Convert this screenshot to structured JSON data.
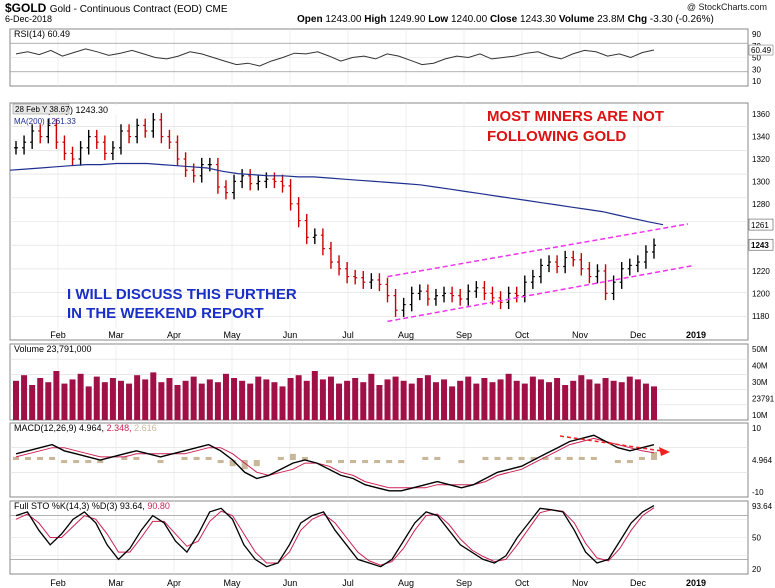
{
  "header": {
    "symbol": "$GOLD",
    "name": "Gold - Continuous Contract (EOD)",
    "exchange": "CME",
    "date": "6-Dec-2018",
    "open_label": "Open",
    "open": "1243.00",
    "high_label": "High",
    "high": "1249.90",
    "low_label": "Low",
    "low": "1240.00",
    "close_label": "Close",
    "close": "1243.30",
    "volume_label": "Volume",
    "volume": "23.8M",
    "chg_label": "Chg",
    "chg": "-3.30 (-0.26%)",
    "credit": "@ StockCharts.com"
  },
  "colors": {
    "up": "#000000",
    "down": "#cc0000",
    "ma": "#1f2f8f",
    "annotation_red": "#dd1111",
    "annotation_blue": "#1a2fc8",
    "channel": "#ee33ee",
    "volume_bar": "#a01046",
    "rsi_line": "#333333",
    "macd_hist": "#c9b79a",
    "signal": "#cc2255"
  },
  "chart_data": [
    {
      "type": "line",
      "panel": "rsi",
      "legend": "RSI(14) 60.49",
      "ylim": [
        10,
        90
      ],
      "ticks": [
        "90",
        "70",
        "50",
        "30",
        "10"
      ],
      "last_label": "60.49",
      "values": [
        55,
        58,
        54,
        60,
        52,
        57,
        62,
        58,
        53,
        56,
        60,
        55,
        50,
        48,
        52,
        58,
        55,
        50,
        45,
        40,
        42,
        38,
        45,
        50,
        56,
        55,
        58,
        52,
        45,
        50,
        52,
        48,
        55,
        52,
        46,
        40,
        42,
        48,
        52,
        50,
        55,
        48,
        50,
        52,
        56,
        58,
        52,
        48,
        55,
        60,
        58,
        52,
        55,
        50,
        57,
        60.49
      ]
    },
    {
      "type": "line",
      "panel": "price",
      "legend": "$GOLD (Daily) 1243.30",
      "ma_legend": "MA(200) 1261.33",
      "tooltip": "28 Feb Y 38.67",
      "ylim": [
        1170,
        1370
      ],
      "ticks": [
        "1360",
        "1340",
        "1320",
        "1300",
        "1280",
        "1261",
        "1243",
        "1220",
        "1200",
        "1180"
      ],
      "months": [
        "Feb",
        "Mar",
        "Apr",
        "May",
        "Jun",
        "Jul",
        "Aug",
        "Sep",
        "Oct",
        "Nov",
        "Dec",
        "2019"
      ],
      "close": [
        1330,
        1335,
        1345,
        1340,
        1350,
        1335,
        1325,
        1320,
        1330,
        1340,
        1335,
        1325,
        1330,
        1345,
        1340,
        1350,
        1345,
        1355,
        1340,
        1335,
        1320,
        1310,
        1305,
        1315,
        1315,
        1295,
        1290,
        1300,
        1305,
        1298,
        1300,
        1302,
        1300,
        1296,
        1280,
        1265,
        1250,
        1252,
        1240,
        1228,
        1222,
        1215,
        1214,
        1210,
        1212,
        1208,
        1198,
        1185,
        1190,
        1200,
        1202,
        1195,
        1198,
        1200,
        1198,
        1195,
        1202,
        1205,
        1200,
        1196,
        1192,
        1200,
        1198,
        1210,
        1215,
        1225,
        1228,
        1224,
        1232,
        1230,
        1222,
        1215,
        1220,
        1200,
        1210,
        1222,
        1225,
        1228,
        1237,
        1243
      ],
      "ma200": [
        1310,
        1311,
        1312,
        1313,
        1314,
        1315,
        1315,
        1316,
        1316,
        1316,
        1315,
        1314,
        1313,
        1312,
        1309,
        1307,
        1306,
        1305,
        1305,
        1304,
        1304,
        1303,
        1302,
        1301,
        1300,
        1299,
        1298,
        1297,
        1295,
        1293,
        1291,
        1289,
        1287,
        1285,
        1283,
        1281,
        1279,
        1277,
        1275,
        1273,
        1270,
        1267,
        1264,
        1261.33
      ],
      "annotation_red": [
        "MOST MINERS ARE NOT",
        "FOLLOWING GOLD"
      ],
      "annotation_blue": [
        "I WILL DISCUSS THIS FURTHER",
        "IN THE WEEKEND REPORT"
      ]
    },
    {
      "type": "bar",
      "panel": "volume",
      "legend": "Volume 23,791,000",
      "ticks": [
        "50M",
        "40M",
        "30M",
        "23791",
        "10M"
      ],
      "ylim": [
        0,
        50
      ],
      "values": [
        28,
        32,
        25,
        30,
        27,
        35,
        26,
        29,
        33,
        24,
        31,
        27,
        30,
        28,
        26,
        32,
        29,
        34,
        27,
        30,
        25,
        28,
        31,
        26,
        29,
        27,
        33,
        30,
        28,
        26,
        31,
        29,
        27,
        24,
        30,
        32,
        28,
        35,
        29,
        31,
        26,
        28,
        30,
        27,
        33,
        25,
        29,
        31,
        28,
        26,
        30,
        32,
        27,
        29,
        24,
        28,
        31,
        26,
        30,
        27,
        29,
        33,
        28,
        26,
        31,
        29,
        27,
        30,
        25,
        28,
        32,
        29,
        26,
        30,
        28,
        27,
        31,
        29,
        26,
        24
      ]
    },
    {
      "type": "line",
      "panel": "macd",
      "legend_name": "MACD(12,26,9)",
      "macd_value": "4.964",
      "signal_value": "2.348",
      "hist_value": "2.616",
      "ylim": [
        -12,
        12
      ],
      "ticks": [
        "10",
        "4.964",
        "-10"
      ],
      "macd": [
        2,
        3,
        4,
        5,
        3,
        2,
        1,
        0,
        1,
        2,
        3,
        2,
        1,
        2,
        3,
        4,
        5,
        3,
        0,
        -4,
        -6,
        -5,
        -3,
        -1,
        0,
        -1,
        -3,
        -5,
        -6,
        -8,
        -9,
        -10,
        -10,
        -9,
        -8,
        -7,
        -8,
        -9,
        -8,
        -6,
        -4,
        -3,
        -2,
        0,
        2,
        4,
        6,
        7,
        8,
        6,
        4,
        3,
        4,
        4.964
      ],
      "signal": [
        1,
        2,
        3,
        4,
        4,
        3,
        2,
        1,
        1,
        1,
        2,
        2,
        2,
        2,
        2,
        3,
        4,
        4,
        2,
        -1,
        -4,
        -5,
        -4,
        -3,
        -1,
        -1,
        -2,
        -4,
        -5,
        -7,
        -8,
        -9,
        -9,
        -9,
        -9,
        -8,
        -8,
        -8,
        -8,
        -7,
        -5,
        -4,
        -3,
        -1,
        1,
        3,
        5,
        6,
        7,
        6,
        5,
        4,
        3,
        2.348
      ]
    },
    {
      "type": "line",
      "panel": "stochastic",
      "legend_name": "Full STO %K(14,3) %D(3)",
      "k_value": "93.64",
      "d_value": "90.80",
      "ylim": [
        0,
        100
      ],
      "ticks": [
        "93.64",
        "50",
        "20"
      ],
      "k": [
        80,
        85,
        60,
        40,
        55,
        75,
        85,
        70,
        40,
        20,
        35,
        60,
        80,
        70,
        45,
        30,
        55,
        85,
        90,
        75,
        40,
        20,
        10,
        15,
        40,
        70,
        80,
        85,
        60,
        40,
        20,
        15,
        10,
        20,
        45,
        70,
        85,
        80,
        60,
        40,
        30,
        20,
        15,
        25,
        50,
        70,
        90,
        88,
        85,
        60,
        30,
        15,
        20,
        45,
        70,
        85,
        93.64
      ],
      "d": [
        75,
        82,
        70,
        50,
        50,
        65,
        80,
        75,
        55,
        30,
        30,
        50,
        72,
        72,
        55,
        38,
        45,
        72,
        86,
        80,
        55,
        30,
        15,
        15,
        30,
        60,
        75,
        82,
        70,
        50,
        30,
        18,
        12,
        17,
        35,
        60,
        80,
        82,
        68,
        48,
        33,
        24,
        17,
        20,
        40,
        62,
        84,
        88,
        86,
        70,
        42,
        22,
        18,
        35,
        60,
        80,
        90.8
      ]
    }
  ]
}
